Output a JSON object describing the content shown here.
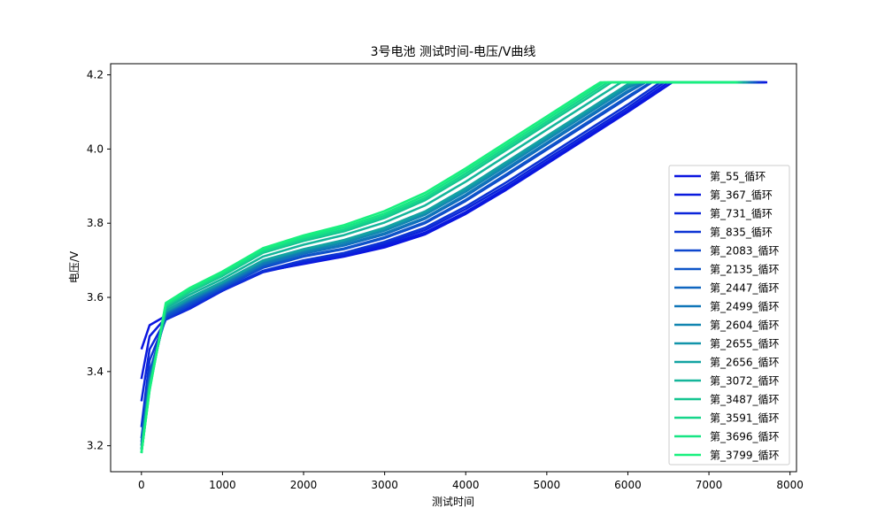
{
  "chart_data": {
    "type": "line",
    "title": "3号电池 测试时间-电压/V曲线",
    "xlabel": "测试时间",
    "ylabel": "电压/V",
    "xlim": [
      -380,
      8080
    ],
    "ylim": [
      3.13,
      4.23
    ],
    "xticks": [
      0,
      1000,
      2000,
      3000,
      4000,
      5000,
      6000,
      7000,
      8000
    ],
    "yticks": [
      3.2,
      3.4,
      3.6,
      3.8,
      4.0,
      4.2
    ],
    "grid": false,
    "legend_position": "lower-right",
    "series": [
      {
        "name": "第_55_循环",
        "color": "#0a14e0",
        "values": [
          [
            0,
            3.46
          ],
          [
            100,
            3.525
          ],
          [
            300,
            3.55
          ],
          [
            600,
            3.575
          ],
          [
            1000,
            3.62
          ],
          [
            1500,
            3.67
          ],
          [
            2000,
            3.69
          ],
          [
            2500,
            3.71
          ],
          [
            3000,
            3.735
          ],
          [
            3500,
            3.77
          ],
          [
            4000,
            3.825
          ],
          [
            4500,
            3.89
          ],
          [
            5000,
            3.96
          ],
          [
            5500,
            4.03
          ],
          [
            6000,
            4.1
          ],
          [
            6550,
            4.18
          ],
          [
            7720,
            4.18
          ]
        ]
      },
      {
        "name": "第_367_循环",
        "color": "#0a1ade",
        "values": [
          [
            0,
            3.38
          ],
          [
            100,
            3.495
          ],
          [
            300,
            3.545
          ],
          [
            600,
            3.572
          ],
          [
            1000,
            3.618
          ],
          [
            1500,
            3.668
          ],
          [
            2000,
            3.692
          ],
          [
            2500,
            3.712
          ],
          [
            3000,
            3.74
          ],
          [
            3500,
            3.775
          ],
          [
            4000,
            3.83
          ],
          [
            4500,
            3.895
          ],
          [
            5000,
            3.965
          ],
          [
            5500,
            4.035
          ],
          [
            6000,
            4.105
          ],
          [
            6500,
            4.18
          ],
          [
            7700,
            4.18
          ]
        ]
      },
      {
        "name": "第_731_循环",
        "color": "#0b25da",
        "values": [
          [
            0,
            3.32
          ],
          [
            100,
            3.46
          ],
          [
            300,
            3.54
          ],
          [
            600,
            3.57
          ],
          [
            1000,
            3.618
          ],
          [
            1500,
            3.668
          ],
          [
            2000,
            3.695
          ],
          [
            2500,
            3.715
          ],
          [
            3000,
            3.745
          ],
          [
            3500,
            3.782
          ],
          [
            4000,
            3.838
          ],
          [
            4500,
            3.902
          ],
          [
            5000,
            3.972
          ],
          [
            5500,
            4.042
          ],
          [
            6000,
            4.112
          ],
          [
            6450,
            4.18
          ],
          [
            7680,
            4.18
          ]
        ]
      },
      {
        "name": "第_835_循环",
        "color": "#0c33d4",
        "values": [
          [
            0,
            3.25
          ],
          [
            100,
            3.43
          ],
          [
            300,
            3.54
          ],
          [
            600,
            3.575
          ],
          [
            1000,
            3.62
          ],
          [
            1500,
            3.672
          ],
          [
            2000,
            3.7
          ],
          [
            2500,
            3.72
          ],
          [
            3000,
            3.75
          ],
          [
            3500,
            3.788
          ],
          [
            4000,
            3.845
          ],
          [
            4500,
            3.91
          ],
          [
            5000,
            3.98
          ],
          [
            5500,
            4.05
          ],
          [
            6000,
            4.12
          ],
          [
            6400,
            4.18
          ],
          [
            7650,
            4.18
          ]
        ]
      },
      {
        "name": "第_2083_循环",
        "color": "#0d46ce",
        "values": [
          [
            0,
            3.22
          ],
          [
            100,
            3.4
          ],
          [
            300,
            3.545
          ],
          [
            600,
            3.58
          ],
          [
            1000,
            3.625
          ],
          [
            1500,
            3.68
          ],
          [
            2000,
            3.71
          ],
          [
            2500,
            3.73
          ],
          [
            3000,
            3.76
          ],
          [
            3500,
            3.8
          ],
          [
            4000,
            3.86
          ],
          [
            4500,
            3.928
          ],
          [
            5000,
            3.998
          ],
          [
            5500,
            4.068
          ],
          [
            6000,
            4.138
          ],
          [
            6300,
            4.18
          ],
          [
            7600,
            4.18
          ]
        ]
      },
      {
        "name": "第_2135_循环",
        "color": "#0e55c8",
        "values": [
          [
            0,
            3.21
          ],
          [
            100,
            3.39
          ],
          [
            300,
            3.55
          ],
          [
            600,
            3.585
          ],
          [
            1000,
            3.628
          ],
          [
            1500,
            3.683
          ],
          [
            2000,
            3.712
          ],
          [
            2500,
            3.732
          ],
          [
            3000,
            3.762
          ],
          [
            3500,
            3.803
          ],
          [
            4000,
            3.863
          ],
          [
            4500,
            3.932
          ],
          [
            5000,
            4.002
          ],
          [
            5500,
            4.072
          ],
          [
            6000,
            4.142
          ],
          [
            6280,
            4.18
          ],
          [
            7580,
            4.18
          ]
        ]
      },
      {
        "name": "第_2447_循环",
        "color": "#0f66c0",
        "values": [
          [
            0,
            3.2
          ],
          [
            100,
            3.38
          ],
          [
            300,
            3.555
          ],
          [
            600,
            3.59
          ],
          [
            1000,
            3.632
          ],
          [
            1500,
            3.688
          ],
          [
            2000,
            3.718
          ],
          [
            2500,
            3.74
          ],
          [
            3000,
            3.77
          ],
          [
            3500,
            3.812
          ],
          [
            4000,
            3.873
          ],
          [
            4500,
            3.943
          ],
          [
            5000,
            4.013
          ],
          [
            5500,
            4.083
          ],
          [
            6000,
            4.153
          ],
          [
            6220,
            4.18
          ],
          [
            7550,
            4.18
          ]
        ]
      },
      {
        "name": "第_2499_循环",
        "color": "#1076b8",
        "values": [
          [
            0,
            3.2
          ],
          [
            100,
            3.375
          ],
          [
            300,
            3.558
          ],
          [
            600,
            3.592
          ],
          [
            1000,
            3.635
          ],
          [
            1500,
            3.69
          ],
          [
            2000,
            3.72
          ],
          [
            2500,
            3.742
          ],
          [
            3000,
            3.773
          ],
          [
            3500,
            3.815
          ],
          [
            4000,
            3.877
          ],
          [
            4500,
            3.947
          ],
          [
            5000,
            4.017
          ],
          [
            5500,
            4.087
          ],
          [
            6000,
            4.157
          ],
          [
            6200,
            4.18
          ],
          [
            7520,
            4.18
          ]
        ]
      },
      {
        "name": "第_2604_循环",
        "color": "#1185b0",
        "values": [
          [
            0,
            3.19
          ],
          [
            100,
            3.37
          ],
          [
            300,
            3.56
          ],
          [
            600,
            3.595
          ],
          [
            1000,
            3.638
          ],
          [
            1500,
            3.695
          ],
          [
            2000,
            3.725
          ],
          [
            2500,
            3.748
          ],
          [
            3000,
            3.78
          ],
          [
            3500,
            3.823
          ],
          [
            4000,
            3.885
          ],
          [
            4500,
            3.955
          ],
          [
            5000,
            4.025
          ],
          [
            5500,
            4.095
          ],
          [
            6000,
            4.165
          ],
          [
            6150,
            4.18
          ],
          [
            7500,
            4.18
          ]
        ]
      },
      {
        "name": "第_2655_循环",
        "color": "#1294aa",
        "values": [
          [
            0,
            3.19
          ],
          [
            100,
            3.368
          ],
          [
            300,
            3.562
          ],
          [
            600,
            3.598
          ],
          [
            1000,
            3.64
          ],
          [
            1500,
            3.698
          ],
          [
            2000,
            3.728
          ],
          [
            2500,
            3.752
          ],
          [
            3000,
            3.785
          ],
          [
            3500,
            3.828
          ],
          [
            4000,
            3.89
          ],
          [
            4500,
            3.96
          ],
          [
            5000,
            4.03
          ],
          [
            5500,
            4.1
          ],
          [
            6000,
            4.17
          ],
          [
            6120,
            4.18
          ],
          [
            7480,
            4.18
          ]
        ]
      },
      {
        "name": "第_2656_循环",
        "color": "#13a3a2",
        "values": [
          [
            0,
            3.19
          ],
          [
            100,
            3.366
          ],
          [
            300,
            3.564
          ],
          [
            600,
            3.6
          ],
          [
            1000,
            3.642
          ],
          [
            1500,
            3.7
          ],
          [
            2000,
            3.73
          ],
          [
            2500,
            3.755
          ],
          [
            3000,
            3.788
          ],
          [
            3500,
            3.832
          ],
          [
            4000,
            3.895
          ],
          [
            4500,
            3.965
          ],
          [
            5000,
            4.035
          ],
          [
            5500,
            4.105
          ],
          [
            6000,
            4.175
          ],
          [
            6100,
            4.18
          ],
          [
            7460,
            4.18
          ]
        ]
      },
      {
        "name": "第_3072_循环",
        "color": "#14b59a",
        "values": [
          [
            0,
            3.18
          ],
          [
            100,
            3.36
          ],
          [
            300,
            3.57
          ],
          [
            600,
            3.608
          ],
          [
            1000,
            3.65
          ],
          [
            1500,
            3.71
          ],
          [
            2000,
            3.742
          ],
          [
            2500,
            3.768
          ],
          [
            3000,
            3.802
          ],
          [
            3500,
            3.848
          ],
          [
            4000,
            3.912
          ],
          [
            4500,
            3.982
          ],
          [
            5000,
            4.052
          ],
          [
            5500,
            4.122
          ],
          [
            5920,
            4.18
          ],
          [
            7420,
            4.18
          ]
        ]
      },
      {
        "name": "第_3487_循环",
        "color": "#15c590",
        "values": [
          [
            0,
            3.18
          ],
          [
            100,
            3.355
          ],
          [
            300,
            3.575
          ],
          [
            600,
            3.615
          ],
          [
            1000,
            3.658
          ],
          [
            1500,
            3.72
          ],
          [
            2000,
            3.752
          ],
          [
            2500,
            3.778
          ],
          [
            3000,
            3.814
          ],
          [
            3500,
            3.862
          ],
          [
            4000,
            3.927
          ],
          [
            4500,
            3.997
          ],
          [
            5000,
            4.067
          ],
          [
            5500,
            4.137
          ],
          [
            5800,
            4.18
          ],
          [
            7400,
            4.18
          ]
        ]
      },
      {
        "name": "第_3591_循环",
        "color": "#16d68a",
        "values": [
          [
            0,
            3.18
          ],
          [
            100,
            3.352
          ],
          [
            300,
            3.578
          ],
          [
            600,
            3.618
          ],
          [
            1000,
            3.662
          ],
          [
            1500,
            3.724
          ],
          [
            2000,
            3.757
          ],
          [
            2500,
            3.783
          ],
          [
            3000,
            3.82
          ],
          [
            3500,
            3.868
          ],
          [
            4000,
            3.934
          ],
          [
            4500,
            4.004
          ],
          [
            5000,
            4.074
          ],
          [
            5500,
            4.144
          ],
          [
            5750,
            4.18
          ],
          [
            7380,
            4.18
          ]
        ]
      },
      {
        "name": "第_3696_循环",
        "color": "#17e584",
        "values": [
          [
            0,
            3.18
          ],
          [
            100,
            3.35
          ],
          [
            300,
            3.582
          ],
          [
            600,
            3.622
          ],
          [
            1000,
            3.666
          ],
          [
            1500,
            3.729
          ],
          [
            2000,
            3.762
          ],
          [
            2500,
            3.789
          ],
          [
            3000,
            3.826
          ],
          [
            3500,
            3.875
          ],
          [
            4000,
            3.941
          ],
          [
            4500,
            4.011
          ],
          [
            5000,
            4.081
          ],
          [
            5500,
            4.151
          ],
          [
            5700,
            4.18
          ],
          [
            7360,
            4.18
          ]
        ]
      },
      {
        "name": "第_3799_循环",
        "color": "#18f07e",
        "values": [
          [
            0,
            3.18
          ],
          [
            100,
            3.348
          ],
          [
            300,
            3.585
          ],
          [
            600,
            3.626
          ],
          [
            1000,
            3.67
          ],
          [
            1500,
            3.733
          ],
          [
            2000,
            3.767
          ],
          [
            2500,
            3.795
          ],
          [
            3000,
            3.833
          ],
          [
            3500,
            3.882
          ],
          [
            4000,
            3.948
          ],
          [
            4500,
            4.018
          ],
          [
            5000,
            4.088
          ],
          [
            5500,
            4.158
          ],
          [
            5660,
            4.18
          ],
          [
            7340,
            4.18
          ]
        ]
      }
    ]
  }
}
